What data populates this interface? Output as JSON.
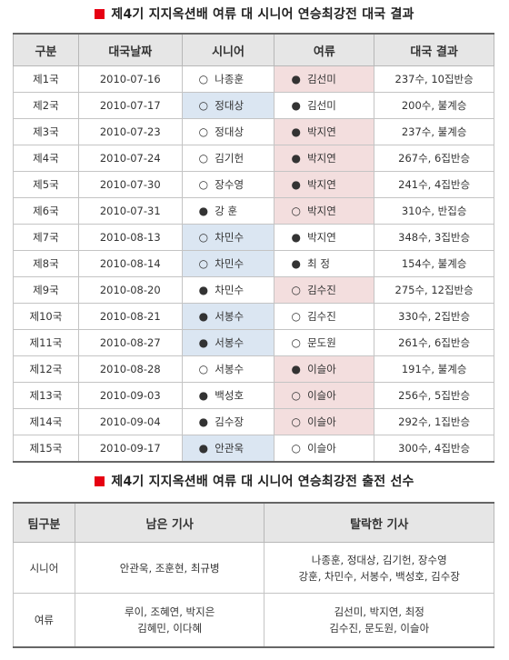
{
  "results_title": "제4기 지지옥션배 여류 대 시니어 연승최강전 대국 결과",
  "results_headers": [
    "구분",
    "대국날짜",
    "시니어",
    "여류",
    "대국 결과"
  ],
  "stones": {
    "white": "○",
    "black": "●"
  },
  "games": [
    {
      "round": "제1국",
      "date": "2010-07-16",
      "senior": "나종훈",
      "senior_stone": "white",
      "women": "김선미",
      "women_stone": "black",
      "result": "237수, 10집반승",
      "winner": "women"
    },
    {
      "round": "제2국",
      "date": "2010-07-17",
      "senior": "정대상",
      "senior_stone": "white",
      "women": "김선미",
      "women_stone": "black",
      "result": "200수, 불계승",
      "winner": "senior"
    },
    {
      "round": "제3국",
      "date": "2010-07-23",
      "senior": "정대상",
      "senior_stone": "white",
      "women": "박지연",
      "women_stone": "black",
      "result": "237수, 불계승",
      "winner": "women"
    },
    {
      "round": "제4국",
      "date": "2010-07-24",
      "senior": "김기헌",
      "senior_stone": "white",
      "women": "박지연",
      "women_stone": "black",
      "result": "267수, 6집반승",
      "winner": "women"
    },
    {
      "round": "제5국",
      "date": "2010-07-30",
      "senior": "장수영",
      "senior_stone": "white",
      "women": "박지연",
      "women_stone": "black",
      "result": "241수, 4집반승",
      "winner": "women"
    },
    {
      "round": "제6국",
      "date": "2010-07-31",
      "senior": "강 훈",
      "senior_stone": "black",
      "women": "박지연",
      "women_stone": "white",
      "result": "310수, 반집승",
      "winner": "women"
    },
    {
      "round": "제7국",
      "date": "2010-08-13",
      "senior": "차민수",
      "senior_stone": "white",
      "women": "박지연",
      "women_stone": "black",
      "result": "348수, 3집반승",
      "winner": "senior"
    },
    {
      "round": "제8국",
      "date": "2010-08-14",
      "senior": "차민수",
      "senior_stone": "white",
      "women": "최 정",
      "women_stone": "black",
      "result": "154수, 불계승",
      "winner": "senior"
    },
    {
      "round": "제9국",
      "date": "2010-08-20",
      "senior": "차민수",
      "senior_stone": "black",
      "women": "김수진",
      "women_stone": "white",
      "result": "275수, 12집반승",
      "winner": "women"
    },
    {
      "round": "제10국",
      "date": "2010-08-21",
      "senior": "서봉수",
      "senior_stone": "black",
      "women": "김수진",
      "women_stone": "white",
      "result": "330수, 2집반승",
      "winner": "senior"
    },
    {
      "round": "제11국",
      "date": "2010-08-27",
      "senior": "서봉수",
      "senior_stone": "black",
      "women": "문도원",
      "women_stone": "white",
      "result": "261수, 6집반승",
      "winner": "senior"
    },
    {
      "round": "제12국",
      "date": "2010-08-28",
      "senior": "서봉수",
      "senior_stone": "white",
      "women": "이슬아",
      "women_stone": "black",
      "result": "191수, 불계승",
      "winner": "women"
    },
    {
      "round": "제13국",
      "date": "2010-09-03",
      "senior": "백성호",
      "senior_stone": "black",
      "women": "이슬아",
      "women_stone": "white",
      "result": "256수, 5집반승",
      "winner": "women"
    },
    {
      "round": "제14국",
      "date": "2010-09-04",
      "senior": "김수장",
      "senior_stone": "black",
      "women": "이슬아",
      "women_stone": "white",
      "result": "292수, 1집반승",
      "winner": "women"
    },
    {
      "round": "제15국",
      "date": "2010-09-17",
      "senior": "안관욱",
      "senior_stone": "black",
      "women": "이슬아",
      "women_stone": "white",
      "result": "300수, 4집반승",
      "winner": "senior"
    }
  ],
  "roster_title": "제4기 지지옥션배 여류 대 시니어 연승최강전 출전 선수",
  "roster_headers": [
    "팀구분",
    "남은 기사",
    "탈락한 기사"
  ],
  "roster": [
    {
      "team": "시니어",
      "remaining": [
        "안관욱, 조훈현, 최규병"
      ],
      "eliminated": [
        "나종훈, 정대상, 김기헌, 장수영",
        "강훈, 차민수, 서봉수, 백성호, 김수장"
      ]
    },
    {
      "team": "여류",
      "remaining": [
        "루이, 조혜연, 박지은",
        "김혜민, 이다혜"
      ],
      "eliminated": [
        "김선미, 박지연, 최정",
        "김수진, 문도원, 이슬아"
      ]
    }
  ],
  "colors": {
    "title_marker": "#e60012",
    "header_bg": "#e6e6e6",
    "senior_win": "#dbe6f2",
    "women_win": "#f3dede"
  }
}
